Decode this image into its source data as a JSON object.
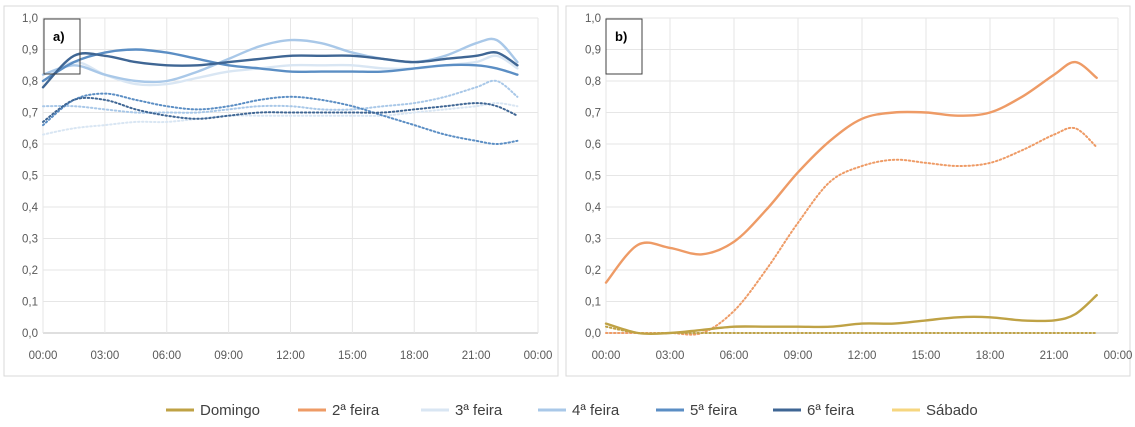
{
  "legend": [
    {
      "name": "Domingo",
      "color": "#bfa245"
    },
    {
      "name": "2ª feira",
      "color": "#ee9b66"
    },
    {
      "name": "3ª feira",
      "color": "#d9e6f3"
    },
    {
      "name": "4ª feira",
      "color": "#a9c8e8"
    },
    {
      "name": "5ª feira",
      "color": "#5b8ec4"
    },
    {
      "name": "6ª feira",
      "color": "#3f6694"
    },
    {
      "name": "Sábado",
      "color": "#f6d67f"
    }
  ],
  "chart_data": [
    {
      "type": "line",
      "panel_label": "a)",
      "x_ticks": [
        "00:00",
        "03:00",
        "06:00",
        "09:00",
        "12:00",
        "15:00",
        "18:00",
        "21:00",
        "00:00"
      ],
      "y_ticks": [
        "0,0",
        "0,1",
        "0,2",
        "0,3",
        "0,4",
        "0,5",
        "0,6",
        "0,7",
        "0,8",
        "0,9",
        "1,0"
      ],
      "ylim": [
        0,
        1
      ],
      "xlim_hours": [
        0,
        24
      ],
      "grid": true,
      "x_hours": [
        0,
        1.5,
        3,
        4.5,
        6,
        7.5,
        9,
        10.5,
        12,
        13.5,
        15,
        16.5,
        18,
        19.5,
        21,
        22,
        23
      ],
      "series": [
        {
          "name": "3ª feira",
          "color": "#d9e6f3",
          "style": "solid",
          "values": [
            0.8,
            0.86,
            0.82,
            0.79,
            0.79,
            0.81,
            0.83,
            0.84,
            0.85,
            0.85,
            0.85,
            0.84,
            0.84,
            0.85,
            0.86,
            0.88,
            0.84
          ]
        },
        {
          "name": "4ª feira",
          "color": "#a9c8e8",
          "style": "solid",
          "values": [
            0.82,
            0.85,
            0.82,
            0.8,
            0.8,
            0.83,
            0.87,
            0.91,
            0.93,
            0.92,
            0.89,
            0.87,
            0.86,
            0.88,
            0.92,
            0.93,
            0.86
          ]
        },
        {
          "name": "5ª feira",
          "color": "#5b8ec4",
          "style": "solid",
          "values": [
            0.8,
            0.86,
            0.89,
            0.9,
            0.89,
            0.87,
            0.85,
            0.84,
            0.83,
            0.83,
            0.83,
            0.83,
            0.84,
            0.85,
            0.85,
            0.84,
            0.82
          ]
        },
        {
          "name": "6ª feira",
          "color": "#3f6694",
          "style": "solid",
          "values": [
            0.78,
            0.88,
            0.88,
            0.86,
            0.85,
            0.85,
            0.86,
            0.87,
            0.88,
            0.88,
            0.88,
            0.87,
            0.86,
            0.87,
            0.88,
            0.89,
            0.85
          ]
        },
        {
          "name": "3ª feira",
          "color": "#d9e6f3",
          "style": "dotted",
          "values": [
            0.63,
            0.65,
            0.66,
            0.67,
            0.67,
            0.68,
            0.69,
            0.69,
            0.69,
            0.69,
            0.69,
            0.69,
            0.7,
            0.71,
            0.72,
            0.73,
            0.72
          ]
        },
        {
          "name": "4ª feira",
          "color": "#a9c8e8",
          "style": "dotted",
          "values": [
            0.72,
            0.72,
            0.71,
            0.7,
            0.7,
            0.7,
            0.71,
            0.72,
            0.72,
            0.71,
            0.71,
            0.72,
            0.73,
            0.75,
            0.78,
            0.8,
            0.75
          ]
        },
        {
          "name": "5ª feira",
          "color": "#5b8ec4",
          "style": "dotted",
          "values": [
            0.66,
            0.74,
            0.76,
            0.74,
            0.72,
            0.71,
            0.72,
            0.74,
            0.75,
            0.74,
            0.72,
            0.69,
            0.66,
            0.63,
            0.61,
            0.6,
            0.61
          ]
        },
        {
          "name": "6ª feira",
          "color": "#3f6694",
          "style": "dotted",
          "values": [
            0.67,
            0.74,
            0.74,
            0.71,
            0.69,
            0.68,
            0.69,
            0.7,
            0.7,
            0.7,
            0.7,
            0.7,
            0.71,
            0.72,
            0.73,
            0.72,
            0.69
          ]
        }
      ]
    },
    {
      "type": "line",
      "panel_label": "b)",
      "x_ticks": [
        "00:00",
        "03:00",
        "06:00",
        "09:00",
        "12:00",
        "15:00",
        "18:00",
        "21:00",
        "00:00"
      ],
      "y_ticks": [
        "0,0",
        "0,1",
        "0,2",
        "0,3",
        "0,4",
        "0,5",
        "0,6",
        "0,7",
        "0,8",
        "0,9",
        "1,0"
      ],
      "ylim": [
        0,
        1
      ],
      "xlim_hours": [
        0,
        24
      ],
      "grid": true,
      "x_hours": [
        0,
        1.5,
        3,
        4.5,
        6,
        7.5,
        9,
        10.5,
        12,
        13.5,
        15,
        16.5,
        18,
        19.5,
        21,
        22,
        23
      ],
      "series": [
        {
          "name": "2ª feira",
          "color": "#ee9b66",
          "style": "solid",
          "values": [
            0.16,
            0.28,
            0.27,
            0.25,
            0.29,
            0.39,
            0.51,
            0.61,
            0.68,
            0.7,
            0.7,
            0.69,
            0.7,
            0.75,
            0.82,
            0.86,
            0.81
          ]
        },
        {
          "name": "2ª feira",
          "color": "#ee9b66",
          "style": "dotted",
          "values": [
            0.0,
            0.0,
            0.0,
            0.0,
            0.07,
            0.2,
            0.35,
            0.48,
            0.53,
            0.55,
            0.54,
            0.53,
            0.54,
            0.58,
            0.63,
            0.65,
            0.59
          ]
        },
        {
          "name": "Domingo",
          "color": "#bfa245",
          "style": "solid",
          "values": [
            0.03,
            0.0,
            0.0,
            0.01,
            0.02,
            0.02,
            0.02,
            0.02,
            0.03,
            0.03,
            0.04,
            0.05,
            0.05,
            0.04,
            0.04,
            0.06,
            0.12
          ]
        },
        {
          "name": "Domingo",
          "color": "#bfa245",
          "style": "dotted",
          "values": [
            0.02,
            0.0,
            0.0,
            0.0,
            0.0,
            0.0,
            0.0,
            0.0,
            0.0,
            0.0,
            0.0,
            0.0,
            0.0,
            0.0,
            0.0,
            0.0,
            0.0
          ]
        }
      ]
    }
  ]
}
